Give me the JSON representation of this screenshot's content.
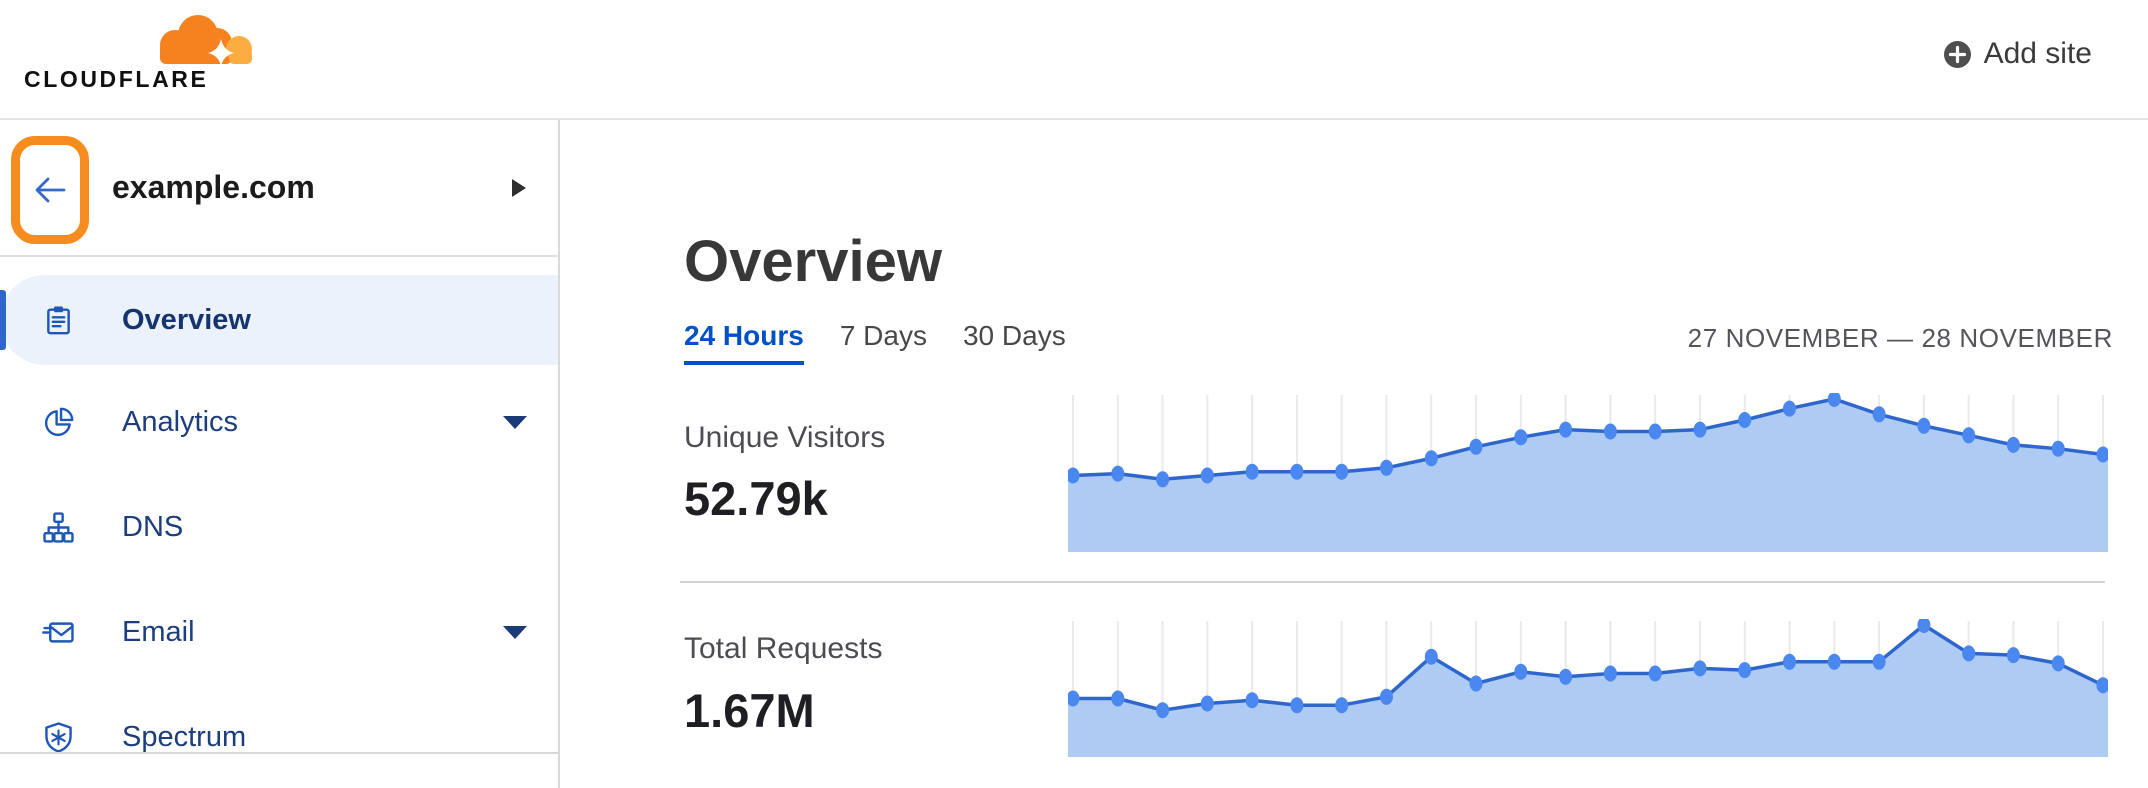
{
  "header": {
    "logo_text": "CLOUDFLARE",
    "add_site_label": "Add site"
  },
  "sidebar": {
    "site_name": "example.com",
    "items": [
      {
        "label": "Overview",
        "icon": "clipboard-icon",
        "selected": true,
        "expandable": false
      },
      {
        "label": "Analytics",
        "icon": "pie-chart-icon",
        "selected": false,
        "expandable": true
      },
      {
        "label": "DNS",
        "icon": "sitemap-icon",
        "selected": false,
        "expandable": false
      },
      {
        "label": "Email",
        "icon": "envelope-icon",
        "selected": false,
        "expandable": true
      },
      {
        "label": "Spectrum",
        "icon": "shield-icon",
        "selected": false,
        "expandable": false
      }
    ]
  },
  "main": {
    "title": "Overview",
    "tabs": [
      {
        "label": "24 Hours",
        "active": true
      },
      {
        "label": "7 Days",
        "active": false
      },
      {
        "label": "30 Days",
        "active": false
      }
    ],
    "date_range": "27 NOVEMBER — 28 NOVEMBER",
    "metrics": [
      {
        "label": "Unique Visitors",
        "value": "52.79k"
      },
      {
        "label": "Total Requests",
        "value": "1.67M"
      }
    ]
  },
  "colors": {
    "brand_orange": "#F6821F",
    "brand_orange_light": "#FBAD41",
    "highlight_orange": "#F78C1E",
    "link_blue": "#0051c3",
    "sidebar_icon_blue": "#1e57b8",
    "sidebar_text_navy": "#1d3e7d",
    "selected_item_bg": "#EBF2FB"
  },
  "chart_data": [
    {
      "type": "area",
      "title": "Unique Visitors",
      "displayed_total": "52.79k",
      "time_range": "24 Hours (27 November — 28 November)",
      "x": "24 hourly points, unlabeled sparkline",
      "values_relative": [
        40,
        41,
        38,
        40,
        42,
        42,
        42,
        44,
        49,
        55,
        60,
        64,
        63,
        63,
        64,
        69,
        75,
        80,
        72,
        66,
        61,
        56,
        54,
        51
      ],
      "value_scale": "relative units 0-100; sparkline has no y-axis labels",
      "ylim": [
        0,
        80
      ],
      "grid": "vertical gridline at each point",
      "legend": "none",
      "colors": {
        "fill": "#AECBF3",
        "line": "#2F66CC",
        "point": "#4A87EE",
        "grid": "#EAEAEA"
      }
    },
    {
      "type": "area",
      "title": "Total Requests",
      "displayed_total": "1.67M",
      "time_range": "24 Hours (27 November — 28 November)",
      "x": "24 hourly points, unlabeled sparkline",
      "values_relative": [
        35,
        35,
        28,
        32,
        34,
        31,
        31,
        36,
        60,
        44,
        51,
        48,
        50,
        50,
        53,
        52,
        57,
        57,
        57,
        79,
        62,
        61,
        56,
        43
      ],
      "value_scale": "relative units 0-100; sparkline has no y-axis labels",
      "ylim": [
        0,
        79
      ],
      "grid": "vertical gridline at each point",
      "legend": "none",
      "colors": {
        "fill": "#AECBF3",
        "line": "#2F66CC",
        "point": "#4A87EE",
        "grid": "#EAEAEA"
      }
    }
  ]
}
